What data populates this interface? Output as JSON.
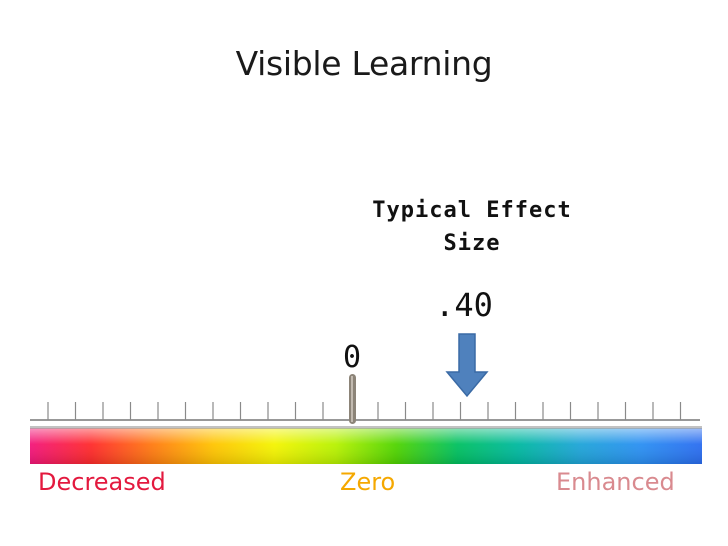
{
  "title": "Visible Learning",
  "effect_label": "Typical Effect Size",
  "effect_value": ".40",
  "zero_value": "0",
  "scale": {
    "labels": [
      {
        "name": "label-decreased",
        "text": "Decreased",
        "color": "#e3193e"
      },
      {
        "name": "label-zero",
        "text": "Zero",
        "color": "#f5a800"
      },
      {
        "name": "label-enhanced",
        "text": "Enhanced",
        "color": "#d98a8f"
      }
    ],
    "gradient": [
      "#f3157a",
      "#ff2a2a",
      "#ff7a10",
      "#ffc400",
      "#f4f400",
      "#b7f200",
      "#4fd400",
      "#00c060",
      "#00b8a0",
      "#1ea4d8",
      "#2a8ff2",
      "#2a6cf0"
    ],
    "pointer_color": "#4f81bd",
    "pointer_edge": "#3a6aa5",
    "zero_marker_color": "#8c8478"
  }
}
